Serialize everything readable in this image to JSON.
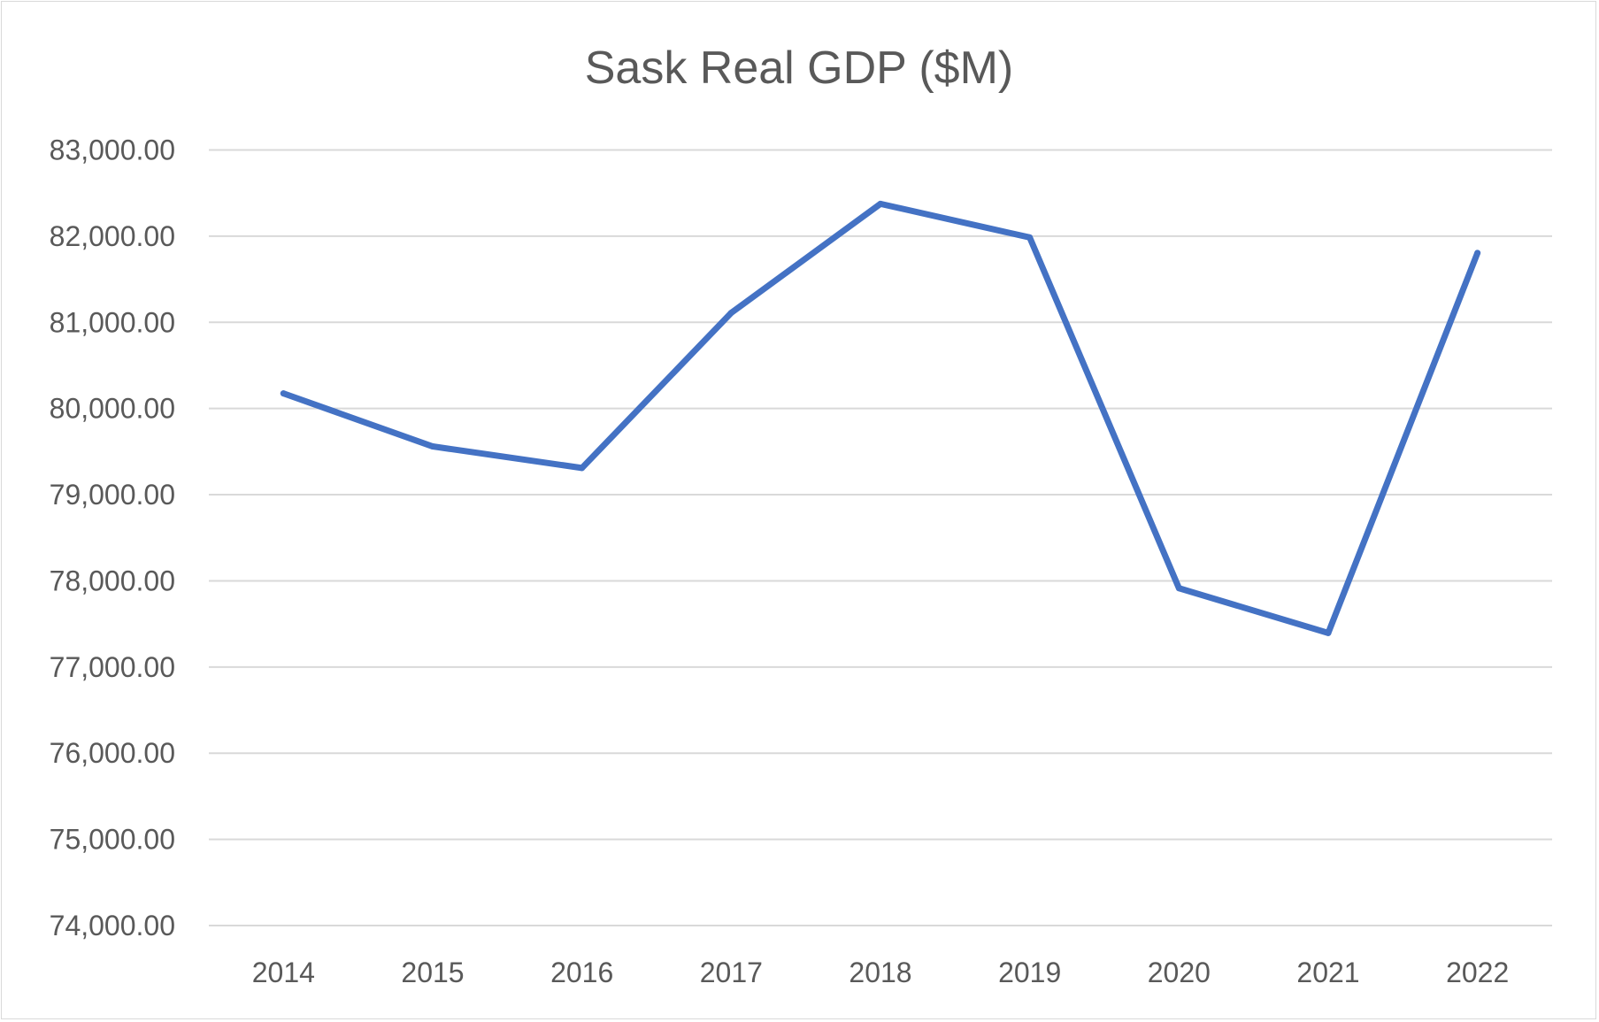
{
  "chart_data": {
    "type": "line",
    "title": "Sask Real GDP ($M)",
    "xlabel": "",
    "ylabel": "",
    "categories": [
      "2014",
      "2015",
      "2016",
      "2017",
      "2018",
      "2019",
      "2020",
      "2021",
      "2022"
    ],
    "series": [
      {
        "name": "Sask Real GDP ($M)",
        "color": "#4472c4",
        "values": [
          80175,
          79560,
          79310,
          81110,
          82375,
          81985,
          77915,
          77395,
          81805
        ]
      }
    ],
    "ylim": [
      74000,
      83000
    ],
    "yticks": [
      74000,
      75000,
      76000,
      77000,
      78000,
      79000,
      80000,
      81000,
      82000,
      83000
    ],
    "ytick_labels": [
      "74,000.00",
      "75,000.00",
      "76,000.00",
      "77,000.00",
      "78,000.00",
      "79,000.00",
      "80,000.00",
      "81,000.00",
      "82,000.00",
      "83,000.00"
    ],
    "grid": true,
    "legend": "none"
  }
}
